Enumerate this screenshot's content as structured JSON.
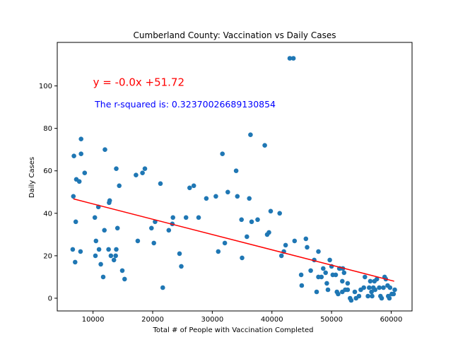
{
  "chart_data": {
    "type": "scatter",
    "title": "Cumberland County: Vaccination vs Daily Cases",
    "xlabel": "Total # of People with Vaccination Completed",
    "ylabel": "Daily Cases",
    "xlim": [
      4000,
      63500
    ],
    "ylim": [
      -6,
      120.5
    ],
    "xticks": [
      10000,
      20000,
      30000,
      40000,
      50000,
      60000
    ],
    "yticks": [
      0,
      20,
      40,
      60,
      80,
      100
    ],
    "grid": false,
    "colors": {
      "points": "#1f77b4",
      "regression": "#ff0000",
      "r_squared": "#0000ff",
      "axes": "#000000"
    },
    "regression": {
      "x": [
        6700,
        60500
      ],
      "y": [
        46.8,
        8.0
      ]
    },
    "annotations": [
      {
        "text": "y = -0.0x +51.72",
        "x": 10000,
        "y": 100,
        "color": "#ff0000"
      },
      {
        "text": "The r-squared is: 0.32370026689130854",
        "x": 10300,
        "y": 89.9,
        "color": "#0000ff"
      }
    ],
    "points": [
      [
        6600,
        23
      ],
      [
        6700,
        48
      ],
      [
        6800,
        67
      ],
      [
        7000,
        17
      ],
      [
        7100,
        36
      ],
      [
        7200,
        56
      ],
      [
        7700,
        55
      ],
      [
        7900,
        22
      ],
      [
        8000,
        68
      ],
      [
        8000,
        75
      ],
      [
        8600,
        59
      ],
      [
        10300,
        38
      ],
      [
        10400,
        20
      ],
      [
        10500,
        27
      ],
      [
        10900,
        43
      ],
      [
        11000,
        23
      ],
      [
        11300,
        16
      ],
      [
        11700,
        10
      ],
      [
        11900,
        32
      ],
      [
        12000,
        70
      ],
      [
        12600,
        23
      ],
      [
        12700,
        45
      ],
      [
        12800,
        46
      ],
      [
        13000,
        20
      ],
      [
        13500,
        18
      ],
      [
        13800,
        20
      ],
      [
        13900,
        61
      ],
      [
        13900,
        23
      ],
      [
        14100,
        33
      ],
      [
        14400,
        53
      ],
      [
        14900,
        13
      ],
      [
        15300,
        9
      ],
      [
        17200,
        58
      ],
      [
        17500,
        27
      ],
      [
        18300,
        59
      ],
      [
        18700,
        61
      ],
      [
        19800,
        33
      ],
      [
        20200,
        26
      ],
      [
        20400,
        36
      ],
      [
        21300,
        54
      ],
      [
        21700,
        5
      ],
      [
        22700,
        32
      ],
      [
        23300,
        35
      ],
      [
        23400,
        38
      ],
      [
        24500,
        21
      ],
      [
        24800,
        15
      ],
      [
        25600,
        38
      ],
      [
        26200,
        52
      ],
      [
        26900,
        53
      ],
      [
        27700,
        38
      ],
      [
        29000,
        47
      ],
      [
        30600,
        48
      ],
      [
        31000,
        22
      ],
      [
        31700,
        68
      ],
      [
        32100,
        26
      ],
      [
        32600,
        50
      ],
      [
        34000,
        60
      ],
      [
        34200,
        48
      ],
      [
        34900,
        37
      ],
      [
        35000,
        19
      ],
      [
        35800,
        29
      ],
      [
        36200,
        47
      ],
      [
        36400,
        77
      ],
      [
        36600,
        36
      ],
      [
        37600,
        37
      ],
      [
        38800,
        72
      ],
      [
        39200,
        30
      ],
      [
        39500,
        31
      ],
      [
        39800,
        41
      ],
      [
        41300,
        40
      ],
      [
        41600,
        20
      ],
      [
        42000,
        22
      ],
      [
        42300,
        25
      ],
      [
        43000,
        113
      ],
      [
        43600,
        113
      ],
      [
        43800,
        27
      ],
      [
        44900,
        11
      ],
      [
        45000,
        6
      ],
      [
        45700,
        28
      ],
      [
        45900,
        24
      ],
      [
        46500,
        13
      ],
      [
        47100,
        18
      ],
      [
        47500,
        3
      ],
      [
        47800,
        22
      ],
      [
        47800,
        10
      ],
      [
        48300,
        10
      ],
      [
        48600,
        14
      ],
      [
        49000,
        12
      ],
      [
        49200,
        7
      ],
      [
        49400,
        4
      ],
      [
        49700,
        18
      ],
      [
        50000,
        15
      ],
      [
        50200,
        11
      ],
      [
        50700,
        11
      ],
      [
        50900,
        3
      ],
      [
        51100,
        2
      ],
      [
        51300,
        14
      ],
      [
        51400,
        14
      ],
      [
        51800,
        8
      ],
      [
        51800,
        3
      ],
      [
        51900,
        14
      ],
      [
        52100,
        12
      ],
      [
        52300,
        4
      ],
      [
        52700,
        4
      ],
      [
        52700,
        7
      ],
      [
        53100,
        0
      ],
      [
        53300,
        -1
      ],
      [
        53900,
        3
      ],
      [
        54100,
        0
      ],
      [
        54600,
        1
      ],
      [
        54900,
        4
      ],
      [
        55400,
        5
      ],
      [
        55600,
        10
      ],
      [
        56100,
        1
      ],
      [
        56300,
        5
      ],
      [
        56500,
        8
      ],
      [
        56700,
        3
      ],
      [
        57000,
        5
      ],
      [
        57200,
        8
      ],
      [
        57300,
        4
      ],
      [
        57600,
        9
      ],
      [
        58000,
        5
      ],
      [
        58200,
        1
      ],
      [
        58400,
        0
      ],
      [
        58700,
        5
      ],
      [
        58900,
        10
      ],
      [
        59100,
        9
      ],
      [
        59400,
        6
      ],
      [
        59700,
        0
      ],
      [
        59800,
        5
      ],
      [
        60100,
        2
      ],
      [
        60400,
        2
      ],
      [
        60600,
        4
      ],
      [
        59500,
        1
      ],
      [
        56800,
        1
      ]
    ]
  }
}
